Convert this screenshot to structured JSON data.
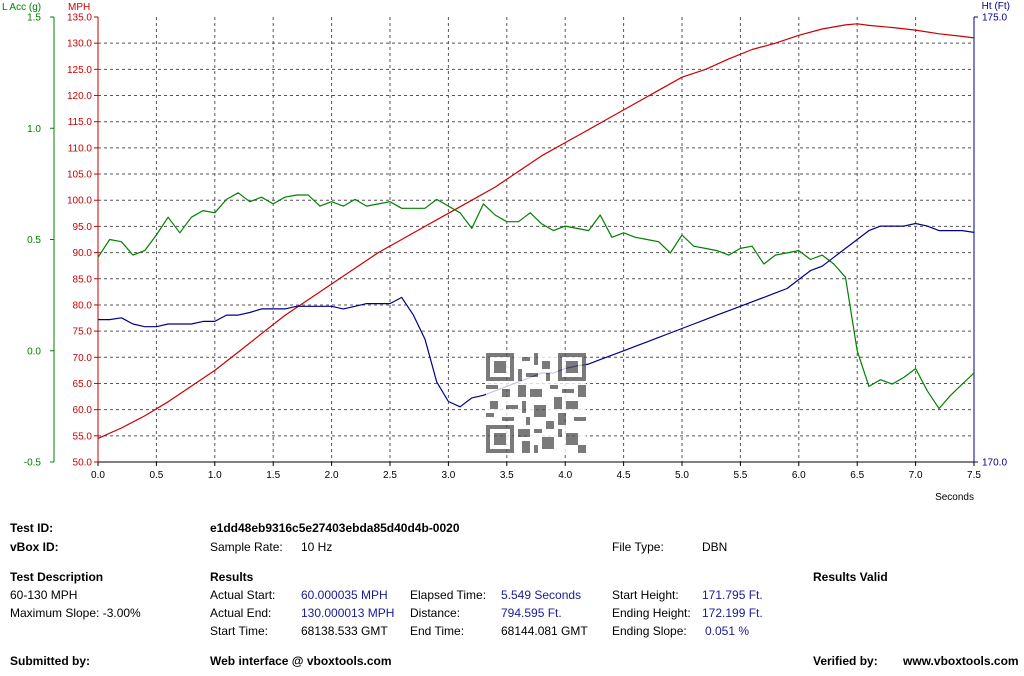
{
  "chart_data": {
    "type": "line",
    "x_label": "Seconds",
    "x_ticks": [
      "0.0",
      "0.5",
      "1.0",
      "1.5",
      "2.0",
      "2.5",
      "3.0",
      "3.5",
      "4.0",
      "4.5",
      "5.0",
      "5.5",
      "6.0",
      "6.5",
      "7.0",
      "7.5"
    ],
    "xlim": [
      0,
      7.5
    ],
    "axes": {
      "lacc": {
        "label": "L Acc (g)",
        "ylim": [
          -0.5,
          1.5
        ],
        "ticks": [
          "1.5",
          "1.0",
          "0.5",
          "0.0",
          "-0.5"
        ],
        "color": "#008000"
      },
      "mph": {
        "label": "MPH",
        "ylim": [
          50,
          135
        ],
        "ticks": [
          "135.0",
          "130.0",
          "125.0",
          "120.0",
          "115.0",
          "110.0",
          "105.0",
          "100.0",
          "95.0",
          "90.0",
          "85.0",
          "80.0",
          "75.0",
          "70.0",
          "65.0",
          "60.0",
          "55.0",
          "50.0"
        ],
        "color": "#cc0000"
      },
      "ht": {
        "label": "Ht (Ft)",
        "ylim": [
          170.0,
          175.0
        ],
        "ticks": [
          "175.0",
          "170.0"
        ],
        "color": "#00008b"
      }
    },
    "series": [
      {
        "name": "MPH",
        "axis": "mph",
        "color": "#cc0000",
        "x": [
          0,
          0.2,
          0.4,
          0.6,
          0.8,
          1.0,
          1.2,
          1.4,
          1.6,
          1.8,
          2.0,
          2.2,
          2.4,
          2.6,
          2.8,
          3.0,
          3.2,
          3.4,
          3.6,
          3.8,
          4.0,
          4.2,
          4.4,
          4.6,
          4.8,
          5.0,
          5.2,
          5.4,
          5.6,
          5.8,
          6.0,
          6.2,
          6.4,
          6.5,
          6.6,
          6.8,
          7.0,
          7.2,
          7.4,
          7.5
        ],
        "y": [
          54.5,
          56.5,
          58.8,
          61.5,
          64.5,
          67.5,
          71.0,
          74.5,
          78.0,
          81.0,
          84.0,
          87.0,
          90.0,
          92.5,
          95.0,
          97.5,
          100.0,
          102.5,
          105.5,
          108.5,
          111.0,
          113.5,
          116.0,
          118.5,
          121.0,
          123.5,
          125.0,
          127.0,
          128.8,
          130.0,
          131.5,
          132.7,
          133.5,
          133.7,
          133.4,
          133.0,
          132.5,
          131.8,
          131.3,
          131.0
        ]
      },
      {
        "name": "L Acc (g)",
        "axis": "lacc",
        "color": "#008000",
        "x": [
          0,
          0.1,
          0.2,
          0.3,
          0.4,
          0.5,
          0.6,
          0.7,
          0.8,
          0.9,
          1.0,
          1.1,
          1.2,
          1.3,
          1.4,
          1.5,
          1.6,
          1.7,
          1.8,
          1.9,
          2.0,
          2.1,
          2.2,
          2.3,
          2.4,
          2.5,
          2.6,
          2.7,
          2.8,
          2.9,
          3.0,
          3.1,
          3.2,
          3.3,
          3.4,
          3.5,
          3.6,
          3.7,
          3.8,
          3.9,
          4.0,
          4.1,
          4.2,
          4.3,
          4.4,
          4.5,
          4.6,
          4.7,
          4.8,
          4.9,
          5.0,
          5.1,
          5.2,
          5.3,
          5.4,
          5.5,
          5.6,
          5.7,
          5.8,
          5.9,
          6.0,
          6.1,
          6.2,
          6.3,
          6.4,
          6.5,
          6.6,
          6.7,
          6.8,
          6.9,
          7.0,
          7.1,
          7.2,
          7.3,
          7.4,
          7.5
        ],
        "y": [
          0.42,
          0.5,
          0.49,
          0.43,
          0.45,
          0.52,
          0.6,
          0.53,
          0.6,
          0.63,
          0.62,
          0.68,
          0.71,
          0.67,
          0.69,
          0.66,
          0.69,
          0.7,
          0.7,
          0.65,
          0.67,
          0.65,
          0.68,
          0.65,
          0.66,
          0.67,
          0.64,
          0.64,
          0.64,
          0.68,
          0.65,
          0.62,
          0.55,
          0.66,
          0.61,
          0.58,
          0.58,
          0.62,
          0.57,
          0.54,
          0.56,
          0.55,
          0.54,
          0.61,
          0.51,
          0.53,
          0.51,
          0.5,
          0.49,
          0.44,
          0.52,
          0.47,
          0.46,
          0.45,
          0.43,
          0.46,
          0.47,
          0.39,
          0.43,
          0.44,
          0.45,
          0.41,
          0.43,
          0.39,
          0.33,
          0.0,
          -0.16,
          -0.13,
          -0.15,
          -0.12,
          -0.08,
          -0.18,
          -0.26,
          -0.2,
          -0.15,
          -0.1
        ]
      },
      {
        "name": "Ht (Ft)",
        "axis": "ht",
        "color": "#00008b",
        "x": [
          0,
          0.1,
          0.2,
          0.3,
          0.4,
          0.5,
          0.6,
          0.7,
          0.8,
          0.9,
          1.0,
          1.1,
          1.2,
          1.3,
          1.4,
          1.5,
          1.6,
          1.7,
          1.8,
          1.9,
          2.0,
          2.1,
          2.2,
          2.3,
          2.4,
          2.5,
          2.6,
          2.7,
          2.8,
          2.9,
          3.0,
          3.1,
          3.2,
          3.3,
          3.4,
          3.5,
          3.6,
          3.7,
          3.8,
          3.9,
          4.0,
          4.1,
          4.2,
          4.3,
          4.4,
          4.5,
          4.6,
          4.7,
          4.8,
          4.9,
          5.0,
          5.1,
          5.2,
          5.3,
          5.4,
          5.5,
          5.6,
          5.7,
          5.8,
          5.9,
          6.0,
          6.1,
          6.2,
          6.3,
          6.4,
          6.5,
          6.6,
          6.7,
          6.8,
          6.9,
          7.0,
          7.1,
          7.2,
          7.3,
          7.4,
          7.5
        ],
        "y": [
          171.6,
          171.6,
          171.62,
          171.55,
          171.52,
          171.52,
          171.55,
          171.55,
          171.55,
          171.58,
          171.58,
          171.65,
          171.65,
          171.68,
          171.72,
          171.72,
          171.72,
          171.75,
          171.75,
          171.75,
          171.75,
          171.72,
          171.75,
          171.78,
          171.78,
          171.78,
          171.85,
          171.65,
          171.38,
          170.9,
          170.68,
          170.62,
          170.72,
          170.75,
          170.8,
          170.85,
          170.9,
          170.95,
          171.0,
          171.0,
          171.05,
          171.08,
          171.1,
          171.15,
          171.2,
          171.25,
          171.3,
          171.35,
          171.4,
          171.45,
          171.5,
          171.55,
          171.6,
          171.65,
          171.7,
          171.75,
          171.8,
          171.85,
          171.9,
          171.95,
          172.05,
          172.15,
          172.2,
          172.3,
          172.4,
          172.5,
          172.6,
          172.65,
          172.65,
          172.65,
          172.68,
          172.65,
          172.6,
          172.6,
          172.6,
          172.58
        ]
      }
    ]
  },
  "info": {
    "test_id_label": "Test ID:",
    "test_id_value": "e1dd48eb9316c5e27403ebda85d40d4b-0020",
    "vbox_id_label": "vBox ID:",
    "sample_rate_label": "Sample Rate:",
    "sample_rate_value": "10 Hz",
    "file_type_label": "File Type:",
    "file_type_value": "DBN",
    "test_desc_heading": "Test Description",
    "test_desc_line1": "60-130 MPH",
    "test_desc_line2": "Maximum Slope:  -3.00%",
    "results_heading": "Results",
    "results_valid": "Results Valid",
    "actual_start_label": "Actual Start:",
    "actual_start_value": "60.000035 MPH",
    "actual_end_label": "Actual End:",
    "actual_end_value": "130.000013 MPH",
    "start_time_label": "Start Time:",
    "start_time_value": "68138.533 GMT",
    "elapsed_label": "Elapsed Time:",
    "elapsed_value": "5.549 Seconds",
    "distance_label": "Distance:",
    "distance_value": "794.595 Ft.",
    "end_time_label": "End Time:",
    "end_time_value": "68144.081 GMT",
    "start_height_label": "Start Height:",
    "start_height_value": "171.795 Ft.",
    "ending_height_label": "Ending Height:",
    "ending_height_value": "172.199 Ft.",
    "ending_slope_label": "Ending Slope:",
    "ending_slope_value": "0.051 %",
    "submitted_label": "Submitted by:",
    "web_interface": "Web interface @ vboxtools.com",
    "verified_label": "Verified by:",
    "verified_site": "www.vboxtools.com"
  },
  "qr_icon": "qr-code"
}
